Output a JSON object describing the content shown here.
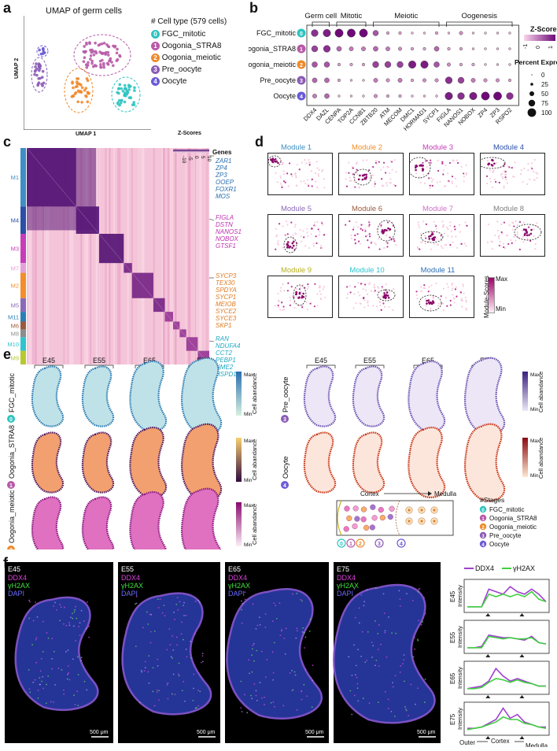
{
  "panels": {
    "a": {
      "label": "a",
      "title": "UMAP of germ cells",
      "xlabel": "UMAP 1",
      "ylabel": "UMAP 2",
      "legend_title": "# Cell type (579 cells)",
      "legend": [
        {
          "id": "0",
          "name": "FGC_mitotic",
          "color": "#2ec4c0"
        },
        {
          "id": "1",
          "name": "Oogonia_STRA8",
          "color": "#b85aa8"
        },
        {
          "id": "2",
          "name": "Oogonia_meiotic",
          "color": "#ef8a2b"
        },
        {
          "id": "3",
          "name": "Pre_oocyte",
          "color": "#8b5bb5"
        },
        {
          "id": "4",
          "name": "Oocyte",
          "color": "#6a5bd6"
        }
      ]
    },
    "b": {
      "label": "b",
      "groups": [
        "Germ cell",
        "Mitotic",
        "Meiotic",
        "Oogenesis"
      ],
      "rows": [
        {
          "name": "FGC_mitotic",
          "id": "0",
          "color": "#2ec4c0"
        },
        {
          "name": "Oogonia_STRA8",
          "id": "1",
          "color": "#b85aa8"
        },
        {
          "name": "Oogonia_meiotic",
          "id": "2",
          "color": "#ef8a2b"
        },
        {
          "name": "Pre_oocyte",
          "id": "3",
          "color": "#8b5bb5"
        },
        {
          "name": "Oocyte",
          "id": "4",
          "color": "#6a5bd6"
        }
      ],
      "genes": [
        "DDX4",
        "DAZL",
        "CENPA",
        "TOP2A",
        "CCNB1",
        "ZBTB20",
        "ATM",
        "MECOM",
        "DMC1",
        "HORMAD1",
        "SYCP1",
        "FIGLA",
        "NANOS1",
        "NOBOX",
        "ZP4",
        "ZP3",
        "RSPO2"
      ],
      "zscore_title": "Z-Score",
      "zscore_ticks": [
        "-1",
        "0",
        "1"
      ],
      "size_title": "Percent Expressed",
      "size_ticks": [
        "0",
        "25",
        "50",
        "75",
        "100"
      ]
    },
    "c": {
      "label": "c",
      "zscores_title": "Z-Scores",
      "zscore_ticks": [
        "-10",
        "-5",
        "0",
        "5",
        "10"
      ],
      "genes_title": "Genes",
      "modules": [
        {
          "name": "M1",
          "color": "#3d8fc4"
        },
        {
          "name": "M4",
          "color": "#2a4fa8"
        },
        {
          "name": "M3",
          "color": "#c83cb8"
        },
        {
          "name": "M7",
          "color": "#e6a0d8"
        },
        {
          "name": "M2",
          "color": "#f28e2b"
        },
        {
          "name": "M5",
          "color": "#8a6ab8"
        },
        {
          "name": "M11",
          "color": "#2b7fb8"
        },
        {
          "name": "M6",
          "color": "#9c5a3c"
        },
        {
          "name": "M8",
          "color": "#8c8c8c"
        },
        {
          "name": "M10",
          "color": "#2ec4d0"
        },
        {
          "name": "M9",
          "color": "#b8c830"
        }
      ],
      "gene_groups": [
        {
          "color": "#2b70b0",
          "genes": [
            "ZAR1",
            "ZP4",
            "ZP3",
            "OOEP",
            "FOXR1",
            "MOS"
          ]
        },
        {
          "color": "#c030b0",
          "genes": [
            "FIGLA",
            "DSTN",
            "NANOS1",
            "NOBOX",
            "GTSF1"
          ]
        },
        {
          "color": "#e07a20",
          "genes": [
            "SYCP3",
            "TEX30",
            "SPDYA",
            "SYCP1",
            "MEIOB",
            "SYCE2",
            "SYCE3",
            "SKP1"
          ]
        },
        {
          "color": "#20a8c0",
          "genes": [
            "RAN",
            "NDUFA4",
            "CCT2",
            "PEBP1",
            "NME2",
            "HSPD1"
          ]
        }
      ]
    },
    "d": {
      "label": "d",
      "modules": [
        {
          "name": "Module 1",
          "color": "#3d8fc4"
        },
        {
          "name": "Module 2",
          "color": "#f28e2b"
        },
        {
          "name": "Module 3",
          "color": "#c83cb8"
        },
        {
          "name": "Module 4",
          "color": "#2a4fa8"
        },
        {
          "name": "Module 5",
          "color": "#8a6ab8"
        },
        {
          "name": "Module 6",
          "color": "#9c5a3c"
        },
        {
          "name": "Module 7",
          "color": "#d070c8"
        },
        {
          "name": "Module 8",
          "color": "#808080"
        },
        {
          "name": "Module 9",
          "color": "#b8b020"
        },
        {
          "name": "Module 10",
          "color": "#2ec4d0"
        },
        {
          "name": "Module 11",
          "color": "#2b6fb8"
        }
      ],
      "scale_title": "Module-Scores",
      "scale_max": "Max",
      "scale_min": "Min"
    },
    "e": {
      "label": "e",
      "stages": [
        "E45",
        "E55",
        "E65",
        "E75"
      ],
      "rows_left": [
        {
          "id": "0",
          "name": "FGC_mitotic",
          "color": "#2ec4c0"
        },
        {
          "id": "1",
          "name": "Oogonia_STRA8",
          "color": "#b85aa8"
        },
        {
          "id": "2",
          "name": "Oogonia_meiotic",
          "color": "#ef8a2b"
        }
      ],
      "rows_right": [
        {
          "id": "3",
          "name": "Pre_oocyte",
          "color": "#8b5bb5"
        },
        {
          "id": "4",
          "name": "Oocyte",
          "color": "#6a5bd6"
        }
      ],
      "scale_title": "Cell abandance",
      "scale_max": "Max",
      "scale_min": "Min",
      "schematic_cortex": "Cortex",
      "schematic_medulla": "Medulla",
      "stages_title": "#Stages",
      "stage_legend": [
        {
          "id": "0",
          "name": "FGC_mitotic",
          "color": "#2ec4c0"
        },
        {
          "id": "1",
          "name": "Oogonia_STRA8",
          "color": "#b85aa8"
        },
        {
          "id": "2",
          "name": "Oogonia_meiotic",
          "color": "#ef8a2b"
        },
        {
          "id": "3",
          "name": "Pre_oocyte",
          "color": "#8b5bb5"
        },
        {
          "id": "4",
          "name": "Oocyte",
          "color": "#6a5bd6"
        }
      ]
    },
    "f": {
      "label": "f",
      "images": [
        {
          "stage": "E45",
          "scale": "500 μm"
        },
        {
          "stage": "E55",
          "scale": "500 μm"
        },
        {
          "stage": "E65",
          "scale": "500 μm"
        },
        {
          "stage": "E75",
          "scale": "500 μm"
        }
      ],
      "channels": [
        {
          "name": "DDX4",
          "color": "#e040e0"
        },
        {
          "name": "γH2AX",
          "color": "#40e040"
        },
        {
          "name": "DAPI",
          "color": "#6a6aff"
        }
      ],
      "legend": [
        {
          "name": "DDX4",
          "color": "#a040d0"
        },
        {
          "name": "γH2AX",
          "color": "#40d040"
        }
      ],
      "intensity_label": "Intensity",
      "x_outer": "Outer",
      "x_cortex": "Cortex",
      "x_medulla": "Medulla"
    }
  }
}
